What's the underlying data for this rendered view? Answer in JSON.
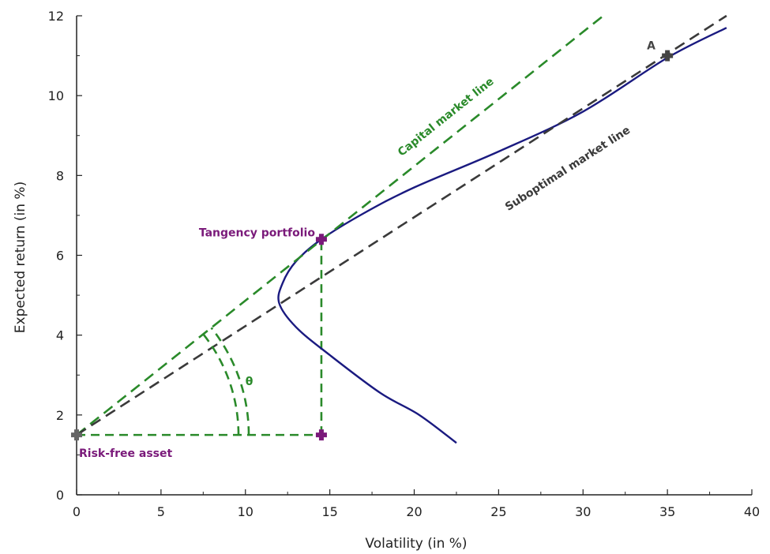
{
  "chart_data": {
    "type": "line",
    "title": "",
    "xlabel": "Volatility (in %)",
    "ylabel": "Expected return (in %)",
    "xlim": [
      0,
      40
    ],
    "ylim": [
      0,
      12
    ],
    "x_ticks": [
      0,
      5,
      10,
      15,
      20,
      25,
      30,
      35,
      40
    ],
    "y_ticks": [
      0,
      2,
      4,
      6,
      8,
      10,
      12
    ],
    "x_tick_labels": [
      "0",
      "5",
      "10",
      "15",
      "20",
      "25",
      "30",
      "35",
      "40"
    ],
    "y_tick_labels": [
      "0",
      "2",
      "4",
      "6",
      "8",
      "10",
      "12"
    ],
    "grid": false,
    "legend": false,
    "series": [
      {
        "style": "solid",
        "color": "#1a1a80",
        "points": [
          [
            22.5,
            1.3
          ],
          [
            20.3,
            2.0
          ],
          [
            18.0,
            2.55
          ],
          [
            15.0,
            3.5
          ],
          [
            13.0,
            4.2
          ],
          [
            12.0,
            4.8
          ],
          [
            12.2,
            5.3
          ],
          [
            13.0,
            5.85
          ],
          [
            14.5,
            6.4
          ],
          [
            17.0,
            7.05
          ],
          [
            20.0,
            7.7
          ],
          [
            25.0,
            8.6
          ],
          [
            30.0,
            9.6
          ],
          [
            35.0,
            10.95
          ],
          [
            38.5,
            11.7
          ]
        ]
      },
      {
        "name": "Capital market line",
        "style": "dashed",
        "color": "#2a8a2a",
        "points": [
          [
            0,
            1.5
          ],
          [
            31.2,
            12.0
          ]
        ]
      },
      {
        "name": "Suboptimal market line",
        "style": "dashed",
        "color": "#3a3a3a",
        "points": [
          [
            0,
            1.5
          ],
          [
            38.5,
            12.0
          ]
        ]
      }
    ],
    "helper_lines": [
      {
        "style": "dashed",
        "color": "#2a8a2a",
        "points": [
          [
            0,
            1.5
          ],
          [
            14.5,
            1.5
          ]
        ]
      },
      {
        "style": "dashed",
        "color": "#2a8a2a",
        "points": [
          [
            14.5,
            1.5
          ],
          [
            14.5,
            6.4
          ]
        ]
      }
    ],
    "angle": {
      "label": "θ",
      "vertex": [
        0,
        1.5
      ],
      "color": "#2a8a2a"
    },
    "markers": [
      {
        "label": "Risk-free asset",
        "x": 0,
        "y": 1.5,
        "color": "#7a1a7a",
        "point_color": "#666666"
      },
      {
        "label": "Tangency portfolio",
        "x": 14.5,
        "y": 6.4,
        "color": "#7a1a7a",
        "point_color": "#7a1a7a"
      },
      {
        "label": "",
        "x": 14.5,
        "y": 1.5,
        "color": "#7a1a7a",
        "point_color": "#7a1a7a"
      },
      {
        "label": "A",
        "x": 35,
        "y": 11.0,
        "color": "#444444",
        "point_color": "#444444"
      }
    ],
    "line_labels": [
      {
        "text": "Capital market line",
        "at": [
          22.0,
          9.4
        ],
        "color": "#2a8a2a"
      },
      {
        "text": "Suboptimal market line",
        "at": [
          29.2,
          8.1
        ],
        "color": "#3a3a3a"
      }
    ]
  }
}
